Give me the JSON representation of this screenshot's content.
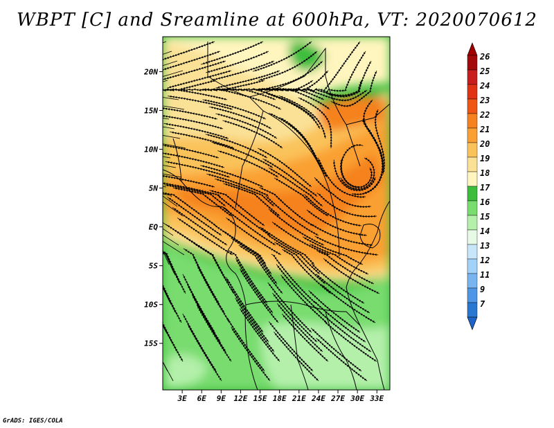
{
  "title": "WBPT [C] and Sreamline at 600hPa, VT: 2020070612",
  "credit": "GrADS: IGES/COLA",
  "map": {
    "lat_range": [
      -21,
      24.5
    ],
    "lon_range": [
      0,
      35
    ],
    "lat_ticks": [
      {
        "value": 20,
        "label": "20N"
      },
      {
        "value": 15,
        "label": "15N"
      },
      {
        "value": 10,
        "label": "10N"
      },
      {
        "value": 5,
        "label": "5N"
      },
      {
        "value": 0,
        "label": "EQ"
      },
      {
        "value": -5,
        "label": "5S"
      },
      {
        "value": -10,
        "label": "10S"
      },
      {
        "value": -15,
        "label": "15S"
      }
    ],
    "lon_ticks": [
      {
        "value": 3,
        "label": "3E"
      },
      {
        "value": 6,
        "label": "6E"
      },
      {
        "value": 9,
        "label": "9E"
      },
      {
        "value": 12,
        "label": "12E"
      },
      {
        "value": 15,
        "label": "15E"
      },
      {
        "value": 18,
        "label": "18E"
      },
      {
        "value": 21,
        "label": "21E"
      },
      {
        "value": 24,
        "label": "24E"
      },
      {
        "value": 27,
        "label": "27E"
      },
      {
        "value": 30,
        "label": "30E"
      },
      {
        "value": 33,
        "label": "33E"
      }
    ]
  },
  "colorbar": {
    "labels": [
      "26",
      "25",
      "24",
      "23",
      "22",
      "21",
      "20",
      "19",
      "18",
      "17",
      "16",
      "15",
      "14",
      "13",
      "12",
      "11",
      "9",
      "7"
    ],
    "colors": [
      "#a50a0a",
      "#c81e1e",
      "#e13214",
      "#f05514",
      "#f5821e",
      "#faa032",
      "#fac35a",
      "#fae196",
      "#fff5be",
      "#3cbe3c",
      "#78dc6e",
      "#b4f0aa",
      "#e6fae6",
      "#c8e6fa",
      "#a0d2fa",
      "#78b4f0",
      "#5096e6",
      "#2878d2"
    ],
    "top_color": "#a00000",
    "bottom_color": "#1e64c8"
  }
}
